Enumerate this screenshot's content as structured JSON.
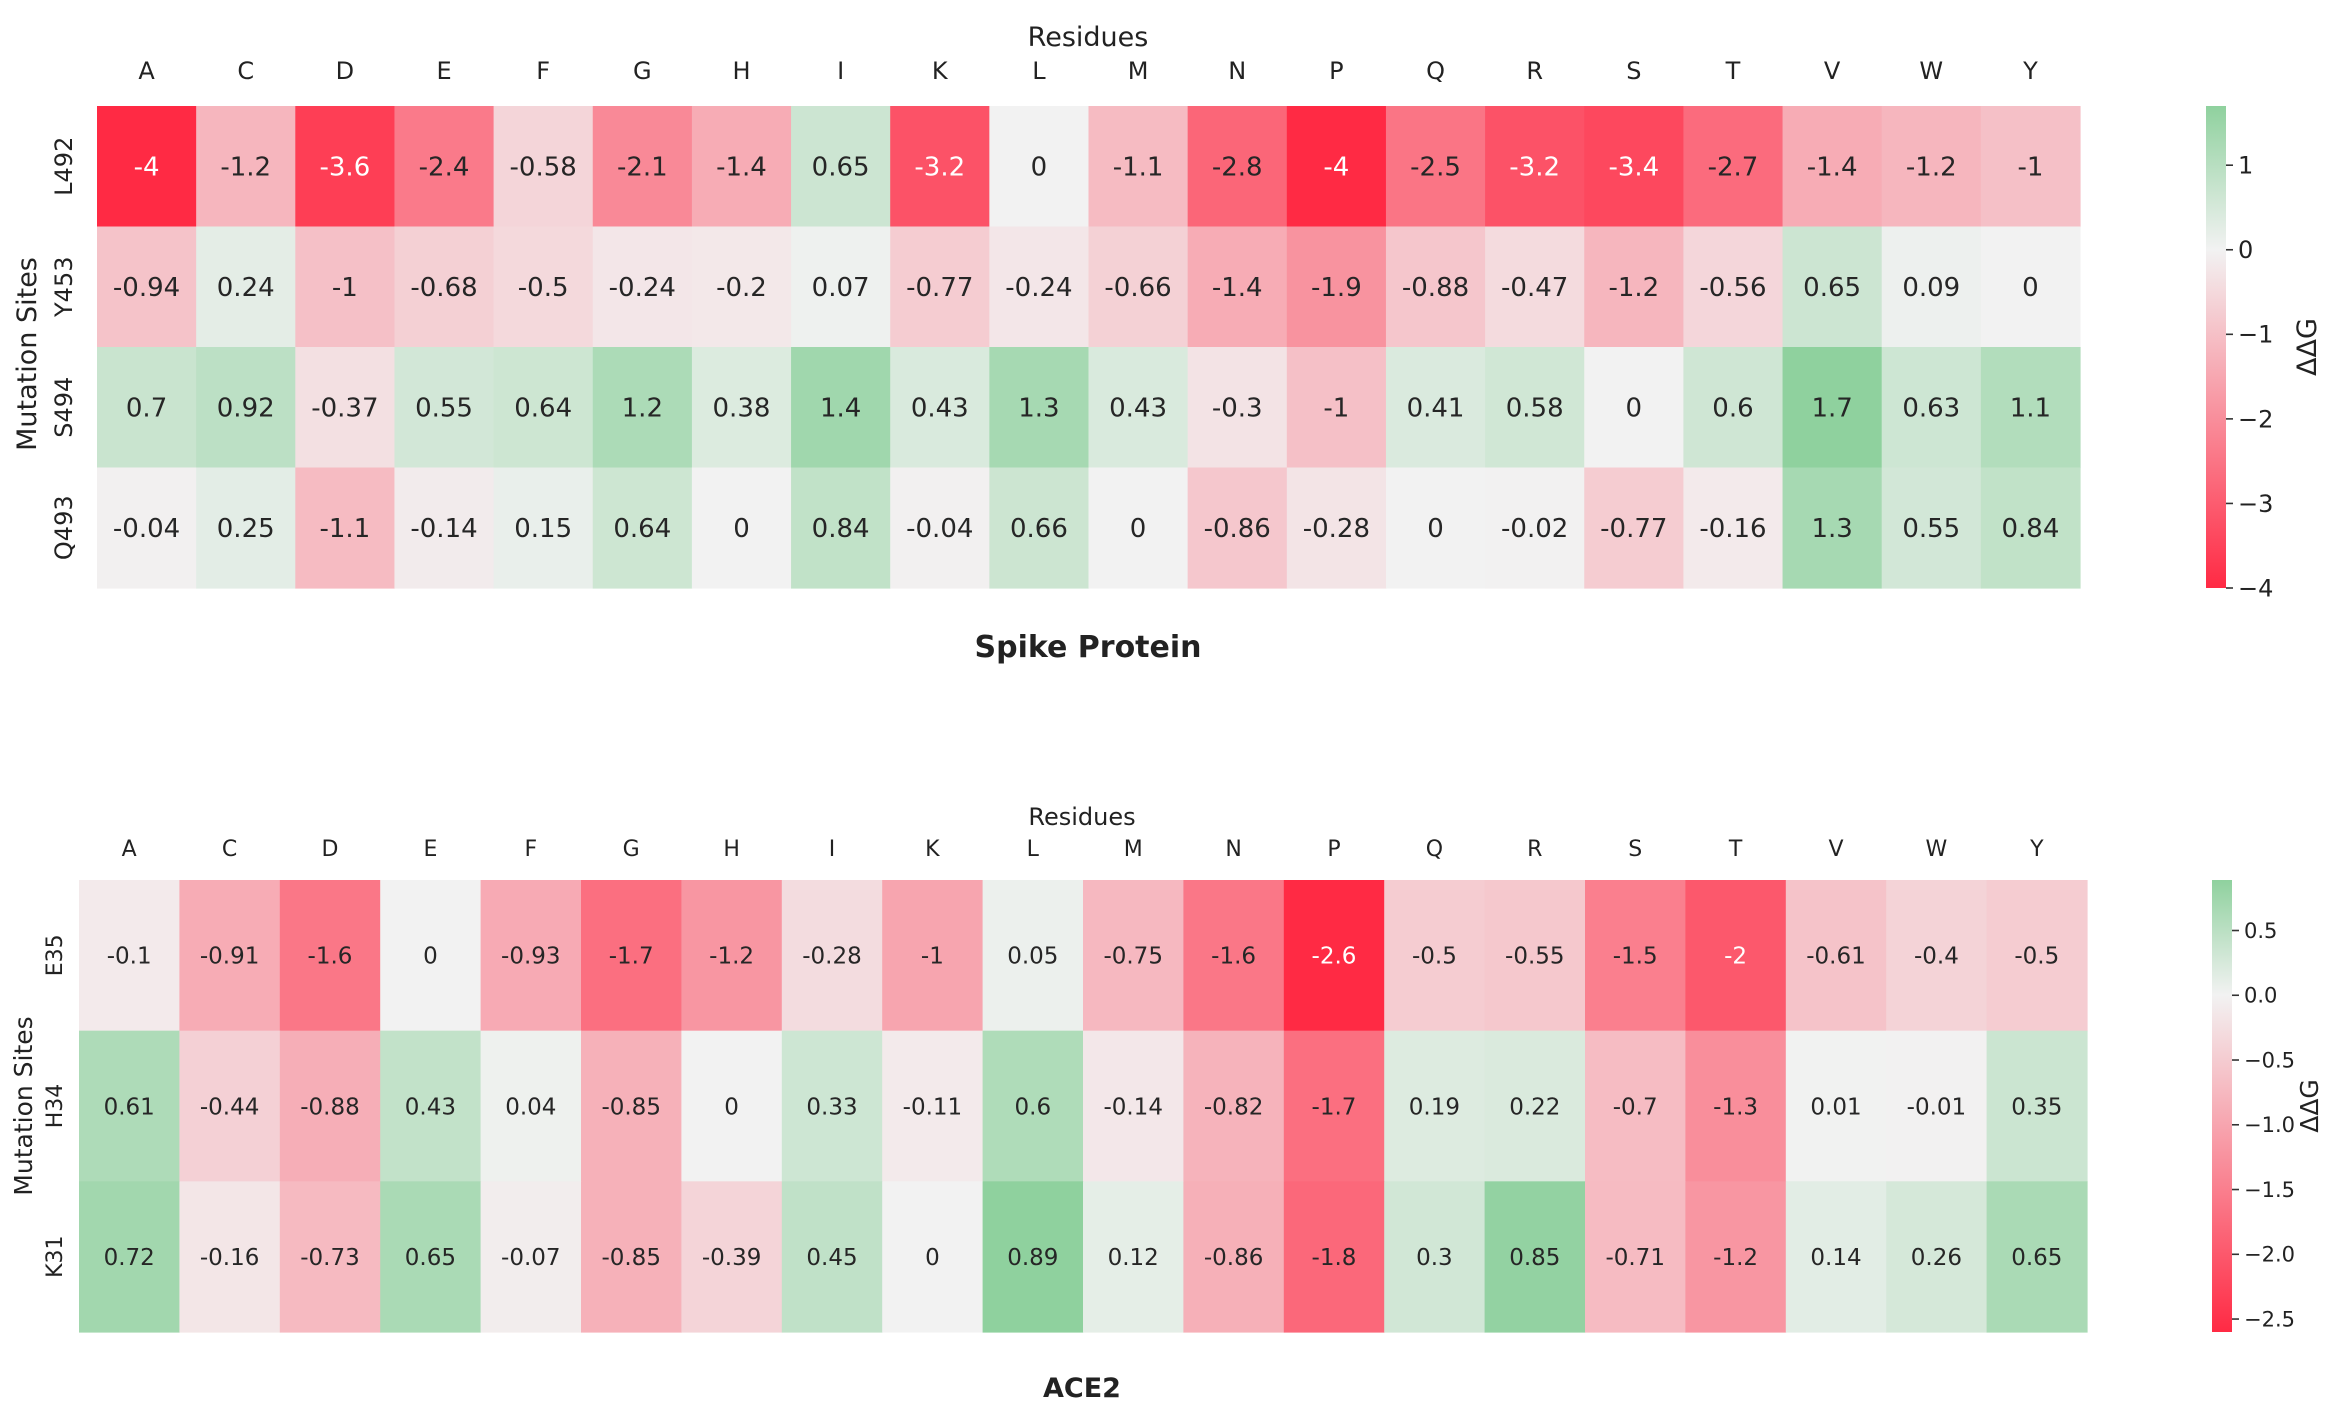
{
  "chart_data": [
    {
      "type": "heatmap",
      "title": "Spike Protein",
      "xlabel": "Residues",
      "ylabel": "Mutation Sites",
      "categories": [
        "A",
        "C",
        "D",
        "E",
        "F",
        "G",
        "H",
        "I",
        "K",
        "L",
        "M",
        "N",
        "P",
        "Q",
        "R",
        "S",
        "T",
        "V",
        "W",
        "Y"
      ],
      "rows": [
        {
          "label": "L492",
          "values": [
            "-4",
            "-1.2",
            "-3.6",
            "-2.4",
            "-0.58",
            "-2.1",
            "-1.4",
            "0.65",
            "-3.2",
            "0",
            "-1.1",
            "-2.8",
            "-4",
            "-2.5",
            "-3.2",
            "-3.4",
            "-2.7",
            "-1.4",
            "-1.2",
            "-1"
          ]
        },
        {
          "label": "Y453",
          "values": [
            "-0.94",
            "0.24",
            "-1",
            "-0.68",
            "-0.5",
            "-0.24",
            "-0.2",
            "0.07",
            "-0.77",
            "-0.24",
            "-0.66",
            "-1.4",
            "-1.9",
            "-0.88",
            "-0.47",
            "-1.2",
            "-0.56",
            "0.65",
            "0.09",
            "0"
          ]
        },
        {
          "label": "S494",
          "values": [
            "0.7",
            "0.92",
            "-0.37",
            "0.55",
            "0.64",
            "1.2",
            "0.38",
            "1.4",
            "0.43",
            "1.3",
            "0.43",
            "-0.3",
            "-1",
            "0.41",
            "0.58",
            "0",
            "0.6",
            "1.7",
            "0.63",
            "1.1"
          ]
        },
        {
          "label": "Q493",
          "values": [
            "-0.04",
            "0.25",
            "-1.1",
            "-0.14",
            "0.15",
            "0.64",
            "0",
            "0.84",
            "-0.04",
            "0.66",
            "0",
            "-0.86",
            "-0.28",
            "0",
            "-0.02",
            "-0.77",
            "-0.16",
            "1.3",
            "0.55",
            "0.84"
          ]
        }
      ],
      "colorbar": {
        "label": "ΔΔG",
        "range": [
          -4,
          1.7
        ],
        "ticks": [
          1,
          0,
          -1,
          -2,
          -3,
          -4
        ],
        "tick_labels": [
          "1",
          "0",
          "−1",
          "−2",
          "−3",
          "−4"
        ]
      },
      "colors": {
        "low": "#ff2a44",
        "mid": "#f2f2f2",
        "high": "#8fd19e"
      },
      "legend": "right"
    },
    {
      "type": "heatmap",
      "title": "ACE2",
      "xlabel": "Residues",
      "ylabel": "Mutation Sites",
      "categories": [
        "A",
        "C",
        "D",
        "E",
        "F",
        "G",
        "H",
        "I",
        "K",
        "L",
        "M",
        "N",
        "P",
        "Q",
        "R",
        "S",
        "T",
        "V",
        "W",
        "Y"
      ],
      "rows": [
        {
          "label": "E35",
          "values": [
            "-0.1",
            "-0.91",
            "-1.6",
            "0",
            "-0.93",
            "-1.7",
            "-1.2",
            "-0.28",
            "-1",
            "0.05",
            "-0.75",
            "-1.6",
            "-2.6",
            "-0.5",
            "-0.55",
            "-1.5",
            "-2",
            "-0.61",
            "-0.4",
            "-0.5"
          ]
        },
        {
          "label": "H34",
          "values": [
            "0.61",
            "-0.44",
            "-0.88",
            "0.43",
            "0.04",
            "-0.85",
            "0",
            "0.33",
            "-0.11",
            "0.6",
            "-0.14",
            "-0.82",
            "-1.7",
            "0.19",
            "0.22",
            "-0.7",
            "-1.3",
            "0.01",
            "-0.01",
            "0.35"
          ]
        },
        {
          "label": "K31",
          "values": [
            "0.72",
            "-0.16",
            "-0.73",
            "0.65",
            "-0.07",
            "-0.85",
            "-0.39",
            "0.45",
            "0",
            "0.89",
            "0.12",
            "-0.86",
            "-1.8",
            "0.3",
            "0.85",
            "-0.71",
            "-1.2",
            "0.14",
            "0.26",
            "0.65"
          ]
        }
      ],
      "colorbar": {
        "label": "ΔΔG",
        "range": [
          -2.6,
          0.89
        ],
        "ticks": [
          0.5,
          0.0,
          -0.5,
          -1.0,
          -1.5,
          -2.0,
          -2.5
        ],
        "tick_labels": [
          "0.5",
          "0.0",
          "−0.5",
          "−1.0",
          "−1.5",
          "−2.0",
          "−2.5"
        ]
      },
      "colors": {
        "low": "#ff2a44",
        "mid": "#f2f2f2",
        "high": "#8fd19e"
      },
      "legend": "right"
    }
  ]
}
